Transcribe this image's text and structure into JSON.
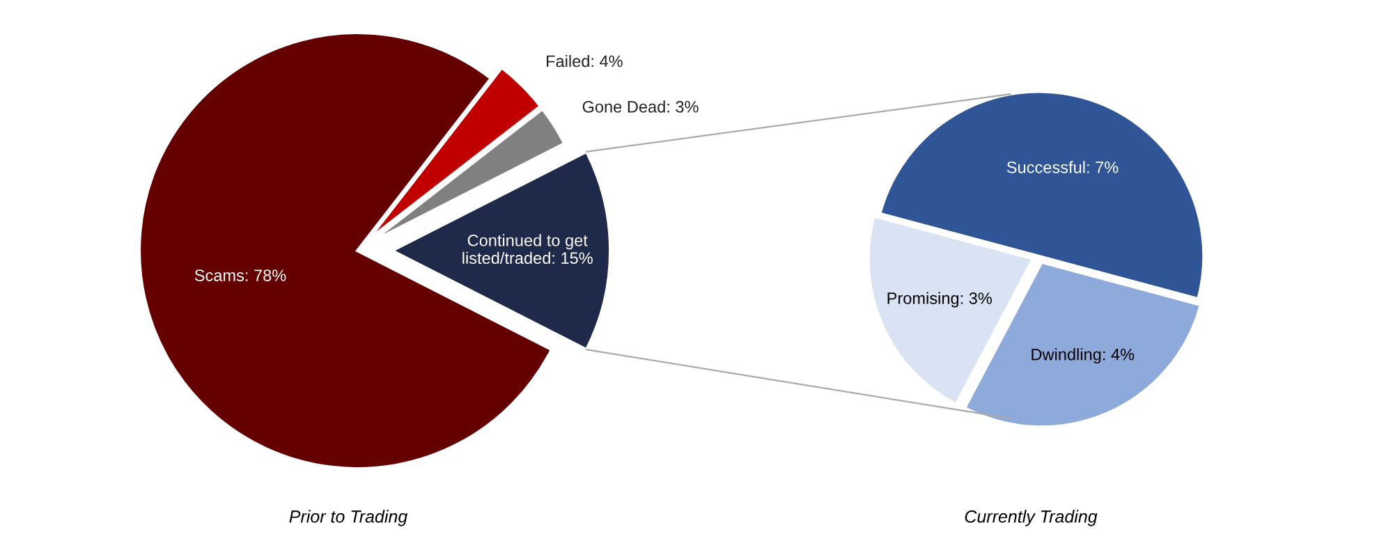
{
  "chart_data": [
    {
      "type": "pie",
      "title": "Prior to Trading",
      "categories": [
        "Continued to get listed/traded",
        "Gone Dead",
        "Failed",
        "Scams"
      ],
      "values": [
        15,
        3,
        4,
        78
      ],
      "value_labels": [
        "15%",
        "3%",
        "4%",
        "78%"
      ],
      "colors": [
        "#1f2a4a",
        "#808080",
        "#c00000",
        "#650000"
      ]
    },
    {
      "type": "pie",
      "title": "Currently Trading",
      "categories": [
        "Successful",
        "Promising",
        "Dwindling"
      ],
      "values": [
        7,
        3,
        4
      ],
      "value_labels": [
        "7%",
        "3%",
        "4%"
      ],
      "colors": [
        "#2f5597",
        "#dae3f3",
        "#8eaadb"
      ]
    }
  ]
}
